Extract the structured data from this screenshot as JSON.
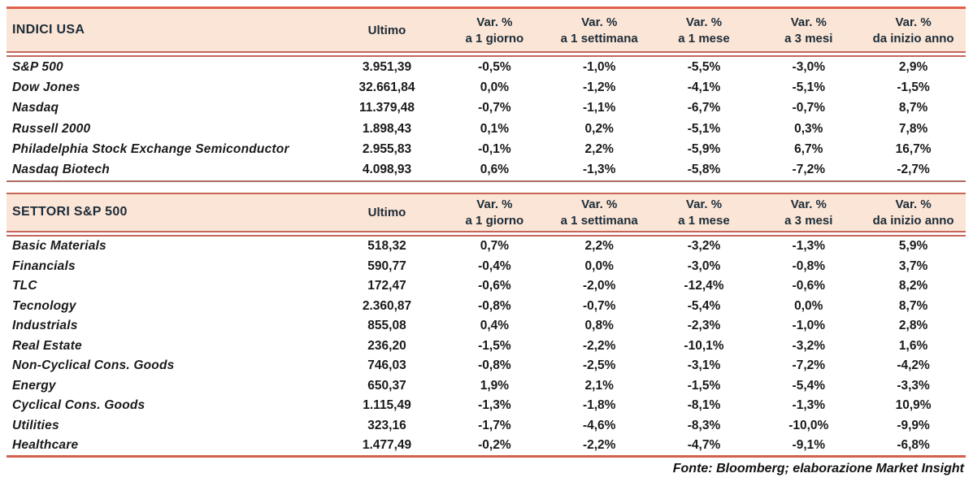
{
  "colors": {
    "header_bg": "#fbe5d6",
    "accent_border": "#e0604c",
    "muted_border": "#c4675a",
    "header_text": "#1d2c38",
    "body_text": "#1a1a1a"
  },
  "columns": {
    "ultimo": "Ultimo",
    "var_label": "Var. %",
    "periods": [
      "a 1 giorno",
      "a 1 settimana",
      "a 1 mese",
      "a 3 mesi",
      "da inizio anno"
    ]
  },
  "tables": [
    {
      "title": "INDICI USA",
      "rows": [
        {
          "name": "S&P 500",
          "ultimo": "3.951,39",
          "vars": [
            "-0,5%",
            "-1,0%",
            "-5,5%",
            "-3,0%",
            "2,9%"
          ]
        },
        {
          "name": "Dow Jones",
          "ultimo": "32.661,84",
          "vars": [
            "0,0%",
            "-1,2%",
            "-4,1%",
            "-5,1%",
            "-1,5%"
          ]
        },
        {
          "name": "Nasdaq",
          "ultimo": "11.379,48",
          "vars": [
            "-0,7%",
            "-1,1%",
            "-6,7%",
            "-0,7%",
            "8,7%"
          ]
        },
        {
          "name": "Russell 2000",
          "ultimo": "1.898,43",
          "vars": [
            "0,1%",
            "0,2%",
            "-5,1%",
            "0,3%",
            "7,8%"
          ]
        },
        {
          "name": "Philadelphia Stock Exchange Semiconductor",
          "ultimo": "2.955,83",
          "vars": [
            "-0,1%",
            "2,2%",
            "-5,9%",
            "6,7%",
            "16,7%"
          ]
        },
        {
          "name": "Nasdaq Biotech",
          "ultimo": "4.098,93",
          "vars": [
            "0,6%",
            "-1,3%",
            "-5,8%",
            "-7,2%",
            "-2,7%"
          ]
        }
      ]
    },
    {
      "title": "SETTORI S&P 500",
      "rows": [
        {
          "name": "Basic Materials",
          "ultimo": "518,32",
          "vars": [
            "0,7%",
            "2,2%",
            "-3,2%",
            "-1,3%",
            "5,9%"
          ]
        },
        {
          "name": "Financials",
          "ultimo": "590,77",
          "vars": [
            "-0,4%",
            "0,0%",
            "-3,0%",
            "-0,8%",
            "3,7%"
          ]
        },
        {
          "name": "TLC",
          "ultimo": "172,47",
          "vars": [
            "-0,6%",
            "-2,0%",
            "-12,4%",
            "-0,6%",
            "8,2%"
          ]
        },
        {
          "name": "Tecnology",
          "ultimo": "2.360,87",
          "vars": [
            "-0,8%",
            "-0,7%",
            "-5,4%",
            "0,0%",
            "8,7%"
          ]
        },
        {
          "name": "Industrials",
          "ultimo": "855,08",
          "vars": [
            "0,4%",
            "0,8%",
            "-2,3%",
            "-1,0%",
            "2,8%"
          ]
        },
        {
          "name": "Real Estate",
          "ultimo": "236,20",
          "vars": [
            "-1,5%",
            "-2,2%",
            "-10,1%",
            "-3,2%",
            "1,6%"
          ]
        },
        {
          "name": "Non-Cyclical Cons. Goods",
          "ultimo": "746,03",
          "vars": [
            "-0,8%",
            "-2,5%",
            "-3,1%",
            "-7,2%",
            "-4,2%"
          ]
        },
        {
          "name": "Energy",
          "ultimo": "650,37",
          "vars": [
            "1,9%",
            "2,1%",
            "-1,5%",
            "-5,4%",
            "-3,3%"
          ]
        },
        {
          "name": "Cyclical Cons. Goods",
          "ultimo": "1.115,49",
          "vars": [
            "-1,3%",
            "-1,8%",
            "-8,1%",
            "-1,3%",
            "10,9%"
          ]
        },
        {
          "name": "Utilities",
          "ultimo": "323,16",
          "vars": [
            "-1,7%",
            "-4,6%",
            "-8,3%",
            "-10,0%",
            "-9,9%"
          ]
        },
        {
          "name": "Healthcare",
          "ultimo": "1.477,49",
          "vars": [
            "-0,2%",
            "-2,2%",
            "-4,7%",
            "-9,1%",
            "-6,8%"
          ]
        }
      ]
    }
  ],
  "footer": "Fonte: Bloomberg; elaborazione Market Insight"
}
